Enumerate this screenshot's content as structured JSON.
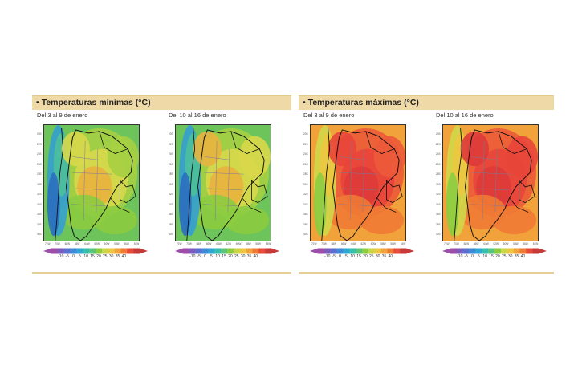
{
  "panels": [
    {
      "id": "minimas",
      "title": "Temperaturas mínimas (°C)",
      "maps": [
        {
          "period": "Del 3 al 9 de enero"
        },
        {
          "period": "Del 10 al 16 de enero"
        }
      ],
      "palette": [
        "#2b6fbf",
        "#35a0d0",
        "#4dbf9a",
        "#6cc45a",
        "#8ccc40",
        "#a6d043",
        "#d8d84a",
        "#e9b23e"
      ]
    },
    {
      "id": "maximas",
      "title": "Temperaturas máximas (°C)",
      "maps": [
        {
          "period": "Del 3 al 9 de enero"
        },
        {
          "period": "Del 10 al 16 de enero"
        }
      ],
      "palette": [
        "#8ccc40",
        "#d0d84a",
        "#ecc840",
        "#f2a23a",
        "#f07b35",
        "#ec5a3a",
        "#e8453a",
        "#dd3a3a"
      ]
    }
  ],
  "colorbar": {
    "ticks": [
      "-10",
      "-5",
      "0",
      "5",
      "10",
      "15",
      "20",
      "25",
      "30",
      "35",
      "40"
    ],
    "colors": [
      "#9b4fa8",
      "#7b5bbd",
      "#5b6fd0",
      "#3f8ad8",
      "#2fa7d3",
      "#37bfae",
      "#59c47a",
      "#8ccc40",
      "#c9d646",
      "#ecc840",
      "#f2a23a",
      "#f07b35",
      "#e84a3a",
      "#c73a3a"
    ]
  },
  "lat_ticks": [
    "20S",
    "22S",
    "24S",
    "26S",
    "28S",
    "30S",
    "32S",
    "34S",
    "36S",
    "38S",
    "40S"
  ],
  "lon_ticks": [
    "71W",
    "70W",
    "68W",
    "66W",
    "64W",
    "62W",
    "60W",
    "58W",
    "56W",
    "54W"
  ]
}
